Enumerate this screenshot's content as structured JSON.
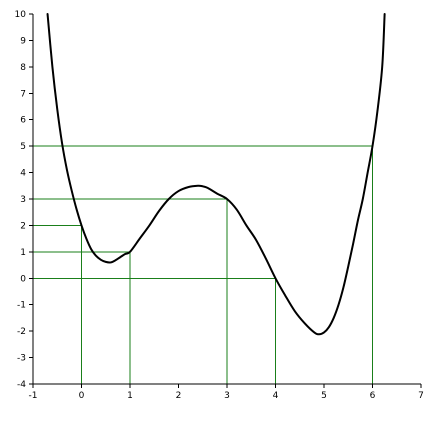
{
  "chart_data": {
    "type": "line",
    "title": "",
    "xlabel": "",
    "ylabel": "",
    "xlim": [
      -1,
      7
    ],
    "ylim": [
      -4,
      10
    ],
    "x_ticks": [
      -1,
      0,
      1,
      2,
      3,
      4,
      5,
      6,
      7
    ],
    "y_ticks": [
      -4,
      -3,
      -2,
      -1,
      0,
      1,
      2,
      3,
      4,
      5,
      6,
      7,
      8,
      9,
      10
    ],
    "grid": false,
    "series": [
      {
        "color": "#000000",
        "x": [
          -0.7,
          -0.6,
          -0.5,
          -0.4,
          -0.3,
          -0.2,
          -0.1,
          0.0,
          0.1,
          0.2,
          0.3,
          0.4,
          0.5,
          0.6,
          0.7,
          0.8,
          0.9,
          1.0,
          1.2,
          1.4,
          1.6,
          1.8,
          2.0,
          2.2,
          2.4,
          2.5,
          2.6,
          2.8,
          3.0,
          3.2,
          3.4,
          3.6,
          3.8,
          4.0,
          4.2,
          4.4,
          4.6,
          4.8,
          4.9,
          5.0,
          5.1,
          5.2,
          5.3,
          5.4,
          5.5,
          5.6,
          5.7,
          5.8,
          5.9,
          6.0,
          6.1,
          6.2,
          6.25
        ],
        "y": [
          10.0,
          8.0,
          6.4,
          5.1,
          4.1,
          3.3,
          2.6,
          2.0,
          1.5,
          1.1,
          0.85,
          0.7,
          0.62,
          0.6,
          0.68,
          0.8,
          0.92,
          1.0,
          1.5,
          2.0,
          2.55,
          3.0,
          3.3,
          3.45,
          3.5,
          3.48,
          3.42,
          3.2,
          3.0,
          2.6,
          2.0,
          1.45,
          0.75,
          0.0,
          -0.65,
          -1.25,
          -1.7,
          -2.05,
          -2.12,
          -2.05,
          -1.85,
          -1.5,
          -1.0,
          -0.35,
          0.45,
          1.3,
          2.2,
          3.0,
          4.0,
          5.0,
          6.3,
          8.0,
          10.0
        ]
      }
    ],
    "guide_lines": {
      "color": "#1a7f1a",
      "vertical_at_x": [
        {
          "x": 0,
          "y": 2
        },
        {
          "x": 1,
          "y": 1
        },
        {
          "x": 3,
          "y": 3
        },
        {
          "x": 4,
          "y": 0
        },
        {
          "x": 6,
          "y": 5
        }
      ],
      "horizontal_at_y": [
        {
          "y": 5,
          "x_from": -1,
          "x_to": 6
        },
        {
          "y": 3,
          "x_from": -1,
          "x_to": 3
        },
        {
          "y": 2,
          "x_from": -1,
          "x_to": 0
        },
        {
          "y": 1,
          "x_from": -1,
          "x_to": 1
        },
        {
          "y": 0,
          "x_from": -1,
          "x_to": 4
        }
      ]
    },
    "axis_color": "#000000"
  }
}
